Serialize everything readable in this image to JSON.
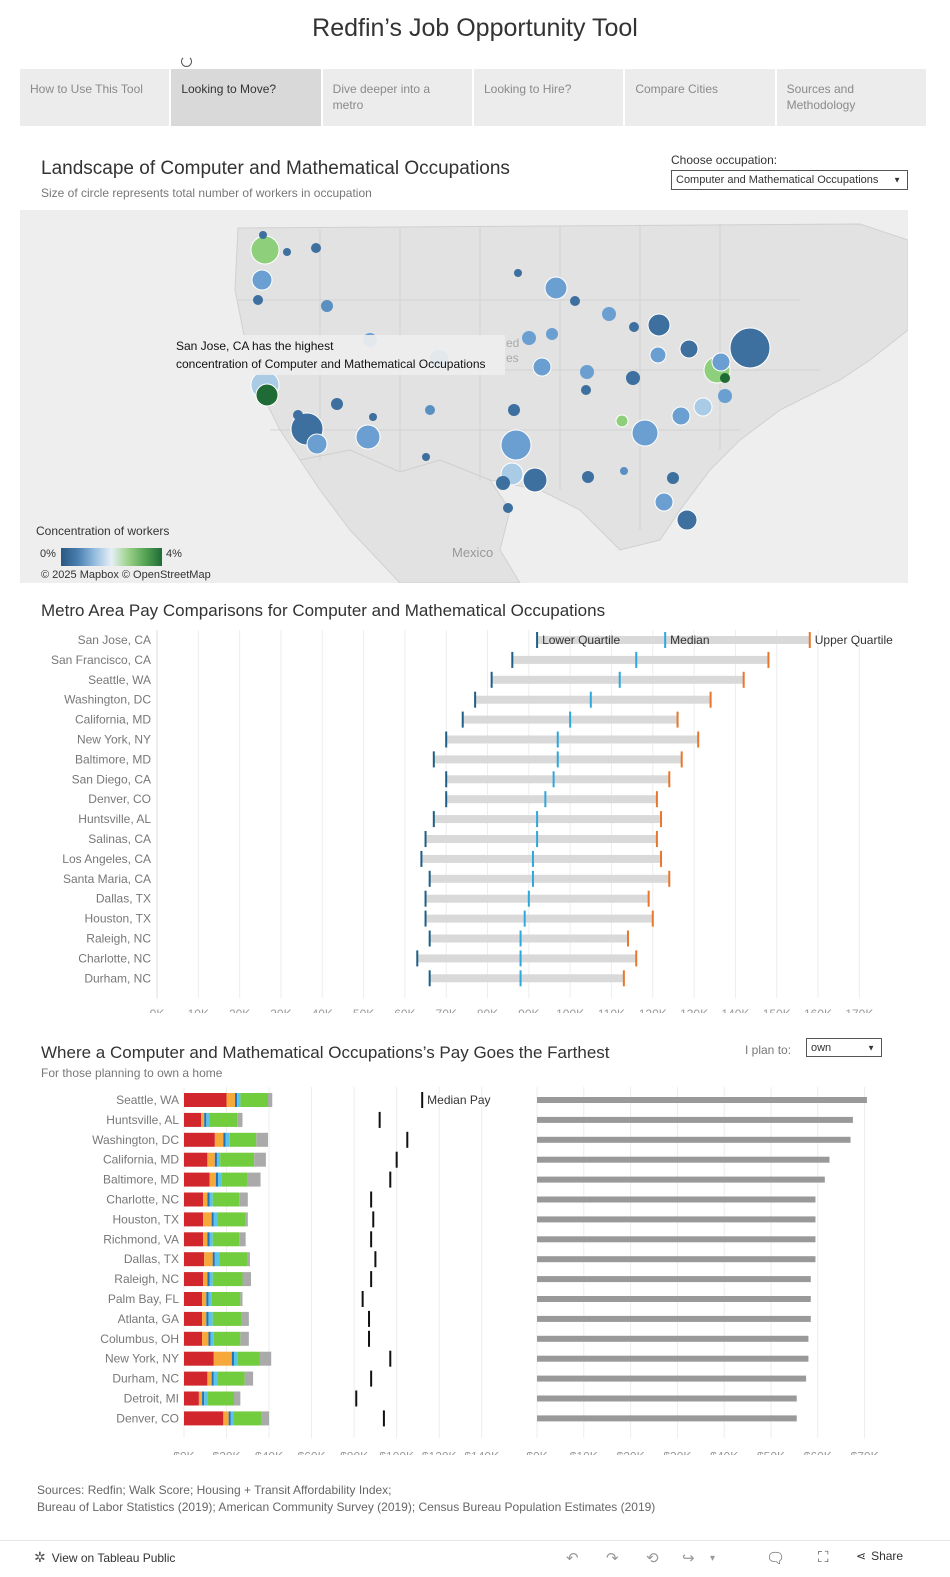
{
  "header": {
    "title": "Redfin’s Job Opportunity Tool"
  },
  "tabs": [
    {
      "label": "How to Use This Tool",
      "active": false
    },
    {
      "label": "Looking to Move?",
      "active": true
    },
    {
      "label": "Dive deeper into a metro",
      "active": false
    },
    {
      "label": "Looking to Hire?",
      "active": false
    },
    {
      "label": "Compare Cities",
      "active": false
    },
    {
      "label": "Sources and Methodology",
      "active": false
    }
  ],
  "map_section": {
    "title": "Landscape of Computer and Mathematical Occupations",
    "subtitle": "Size of circle represents total number of workers in occupation",
    "occupation_label": "Choose occupation:",
    "occupation_value": "Computer and Mathematical Occupations",
    "tooltip_line1": "San Jose, CA has the highest",
    "tooltip_line2": "concentration of Computer and Mathematical Occupations",
    "map_labels": {
      "mexico": "Mexico",
      "united_fragment_1": "ed",
      "united_fragment_2": "es"
    },
    "legend_title": "Concentration of workers",
    "legend_min": "0%",
    "legend_max": "4%",
    "credit": "© 2025 Mapbox  © OpenStreetMap",
    "colors": {
      "low": "#2a5783",
      "mid": "#e6eff5",
      "high": "#1e6b36"
    }
  },
  "pay_section": {
    "title": "Metro Area Pay Comparisons for Computer and Mathematical Occupations"
  },
  "farthest_section": {
    "title": "Where a Computer and Mathematical Occupations’s Pay Goes the Farthest",
    "subtitle": "For those planning to own a home",
    "plan_label": "I plan to:",
    "plan_value": "own",
    "median_pay_label": "Median Pay"
  },
  "sources": {
    "line1": "Sources: Redfin; Walk Score; Housing + Transit Affordability Index;",
    "line2": "Bureau of Labor Statistics (2019); American Community Survey (2019); Census Bureau Population Estimates (2019)"
  },
  "footer": {
    "view_label": "View on Tableau Public",
    "share_label": "Share"
  },
  "chart_data": [
    {
      "type": "range",
      "title": "Metro Area Pay Comparisons for Computer and Mathematical Occupations",
      "legend": [
        "Lower Quartile",
        "Median",
        "Upper Quartile"
      ],
      "colors": {
        "lower": "#1f5f87",
        "median": "#2ea7dc",
        "upper": "#e8762b",
        "range": "#d9d9d9"
      },
      "xlim": [
        0,
        175000
      ],
      "xticks": [
        {
          "v": 0,
          "label": "0K"
        },
        {
          "v": 10000,
          "label": "10K"
        },
        {
          "v": 20000,
          "label": "20K"
        },
        {
          "v": 30000,
          "label": "30K"
        },
        {
          "v": 40000,
          "label": "40K"
        },
        {
          "v": 50000,
          "label": "50K"
        },
        {
          "v": 60000,
          "label": "60K"
        },
        {
          "v": 70000,
          "label": "70K"
        },
        {
          "v": 80000,
          "label": "80K"
        },
        {
          "v": 90000,
          "label": "90K"
        },
        {
          "v": 100000,
          "label": "100K"
        },
        {
          "v": 110000,
          "label": "110K"
        },
        {
          "v": 120000,
          "label": "120K"
        },
        {
          "v": 130000,
          "label": "130K"
        },
        {
          "v": 140000,
          "label": "140K"
        },
        {
          "v": 150000,
          "label": "150K"
        },
        {
          "v": 160000,
          "label": "160K"
        },
        {
          "v": 170000,
          "label": "170K"
        }
      ],
      "rows": [
        {
          "metro": "San Jose, CA",
          "lower": 92000,
          "median": 123000,
          "upper": 158000
        },
        {
          "metro": "San Francisco, CA",
          "lower": 86000,
          "median": 116000,
          "upper": 148000
        },
        {
          "metro": "Seattle, WA",
          "lower": 81000,
          "median": 112000,
          "upper": 142000
        },
        {
          "metro": "Washington, DC",
          "lower": 77000,
          "median": 105000,
          "upper": 134000
        },
        {
          "metro": "California, MD",
          "lower": 74000,
          "median": 100000,
          "upper": 126000
        },
        {
          "metro": "New York, NY",
          "lower": 70000,
          "median": 97000,
          "upper": 131000
        },
        {
          "metro": "Baltimore, MD",
          "lower": 67000,
          "median": 97000,
          "upper": 127000
        },
        {
          "metro": "San Diego, CA",
          "lower": 70000,
          "median": 96000,
          "upper": 124000
        },
        {
          "metro": "Denver, CO",
          "lower": 70000,
          "median": 94000,
          "upper": 121000
        },
        {
          "metro": "Huntsville, AL",
          "lower": 67000,
          "median": 92000,
          "upper": 122000
        },
        {
          "metro": "Salinas, CA",
          "lower": 65000,
          "median": 92000,
          "upper": 121000
        },
        {
          "metro": "Los Angeles, CA",
          "lower": 64000,
          "median": 91000,
          "upper": 122000
        },
        {
          "metro": "Santa Maria, CA",
          "lower": 66000,
          "median": 91000,
          "upper": 124000
        },
        {
          "metro": "Dallas, TX",
          "lower": 65000,
          "median": 90000,
          "upper": 119000
        },
        {
          "metro": "Houston, TX",
          "lower": 65000,
          "median": 89000,
          "upper": 120000
        },
        {
          "metro": "Raleigh, NC",
          "lower": 66000,
          "median": 88000,
          "upper": 114000
        },
        {
          "metro": "Charlotte, NC",
          "lower": 63000,
          "median": 88000,
          "upper": 116000
        },
        {
          "metro": "Durham, NC",
          "lower": 66000,
          "median": 88000,
          "upper": 113000
        }
      ]
    },
    {
      "type": "bar",
      "title": "Where a Computer and Mathematical Occupations’s Pay Goes the Farthest",
      "segment_colors": [
        "#d0262c",
        "#f6a83b",
        "#2173b8",
        "#5bc3e8",
        "#71cc3e",
        "#aaaaaa"
      ],
      "left_xlim": [
        0,
        150000
      ],
      "left_xticks": [
        {
          "v": 0,
          "label": "$0K"
        },
        {
          "v": 20000,
          "label": "$20K"
        },
        {
          "v": 40000,
          "label": "$40K"
        },
        {
          "v": 60000,
          "label": "$60K"
        },
        {
          "v": 80000,
          "label": "$80K"
        },
        {
          "v": 100000,
          "label": "$100K"
        },
        {
          "v": 120000,
          "label": "$120K"
        },
        {
          "v": 140000,
          "label": "$140K"
        }
      ],
      "right_xlim": [
        0,
        75000
      ],
      "right_xticks": [
        {
          "v": 0,
          "label": "$0K"
        },
        {
          "v": 10000,
          "label": "$10K"
        },
        {
          "v": 20000,
          "label": "$20K"
        },
        {
          "v": 30000,
          "label": "$30K"
        },
        {
          "v": 40000,
          "label": "$40K"
        },
        {
          "v": 50000,
          "label": "$50K"
        },
        {
          "v": 60000,
          "label": "$60K"
        },
        {
          "v": 70000,
          "label": "$70K"
        }
      ],
      "bar_color": "#999999",
      "rows": [
        {
          "metro": "Seattle, WA",
          "segments": [
            20000,
            4000,
            1000,
            1500,
            13000,
            2000
          ],
          "median_pay": 112000,
          "remaining": 70500
        },
        {
          "metro": "Huntsville, AL",
          "segments": [
            8000,
            1500,
            1000,
            1500,
            13000,
            2500
          ],
          "median_pay": 92000,
          "remaining": 67500
        },
        {
          "metro": "Washington, DC",
          "segments": [
            14500,
            4000,
            1000,
            2000,
            12500,
            5500
          ],
          "median_pay": 105000,
          "remaining": 67000
        },
        {
          "metro": "California, MD",
          "segments": [
            11000,
            3500,
            1000,
            1500,
            16000,
            5500
          ],
          "median_pay": 100000,
          "remaining": 62500
        },
        {
          "metro": "Baltimore, MD",
          "segments": [
            12000,
            3000,
            1000,
            1500,
            12500,
            6000
          ],
          "median_pay": 97000,
          "remaining": 61500
        },
        {
          "metro": "Charlotte, NC",
          "segments": [
            9000,
            2000,
            1000,
            1500,
            12500,
            4000
          ],
          "median_pay": 88000,
          "remaining": 59500
        },
        {
          "metro": "Houston, TX",
          "segments": [
            9000,
            4000,
            1000,
            2000,
            13000,
            1000
          ],
          "median_pay": 89000,
          "remaining": 59500
        },
        {
          "metro": "Richmond, VA",
          "segments": [
            9000,
            2000,
            1000,
            1500,
            12500,
            3000
          ],
          "median_pay": 88000,
          "remaining": 59500
        },
        {
          "metro": "Dallas, TX",
          "segments": [
            9500,
            4000,
            1000,
            2000,
            13500,
            1000
          ],
          "median_pay": 90000,
          "remaining": 59500
        },
        {
          "metro": "Raleigh, NC",
          "segments": [
            9000,
            2000,
            1000,
            1500,
            14000,
            4000
          ],
          "median_pay": 88000,
          "remaining": 58500
        },
        {
          "metro": "Palm Bay, FL",
          "segments": [
            8500,
            2000,
            1000,
            1500,
            13500,
            1000
          ],
          "median_pay": 84000,
          "remaining": 58500
        },
        {
          "metro": "Atlanta, GA",
          "segments": [
            8500,
            2000,
            1000,
            2000,
            13500,
            3500
          ],
          "median_pay": 87000,
          "remaining": 58500
        },
        {
          "metro": "Columbus, OH",
          "segments": [
            8500,
            3000,
            1000,
            1500,
            12500,
            4000
          ],
          "median_pay": 87000,
          "remaining": 58000
        },
        {
          "metro": "New York, NY",
          "segments": [
            14000,
            8500,
            1000,
            1500,
            10500,
            5500
          ],
          "median_pay": 97000,
          "remaining": 58000
        },
        {
          "metro": "Durham, NC",
          "segments": [
            11000,
            2000,
            1000,
            2000,
            12500,
            4000
          ],
          "median_pay": 88000,
          "remaining": 57500
        },
        {
          "metro": "Detroit, MI",
          "segments": [
            7000,
            1500,
            1000,
            1500,
            12500,
            3000
          ],
          "median_pay": 81000,
          "remaining": 55500
        },
        {
          "metro": "Denver, CO",
          "segments": [
            18500,
            2500,
            1000,
            1500,
            13000,
            3500
          ],
          "median_pay": 94000,
          "remaining": 55500
        }
      ]
    }
  ]
}
